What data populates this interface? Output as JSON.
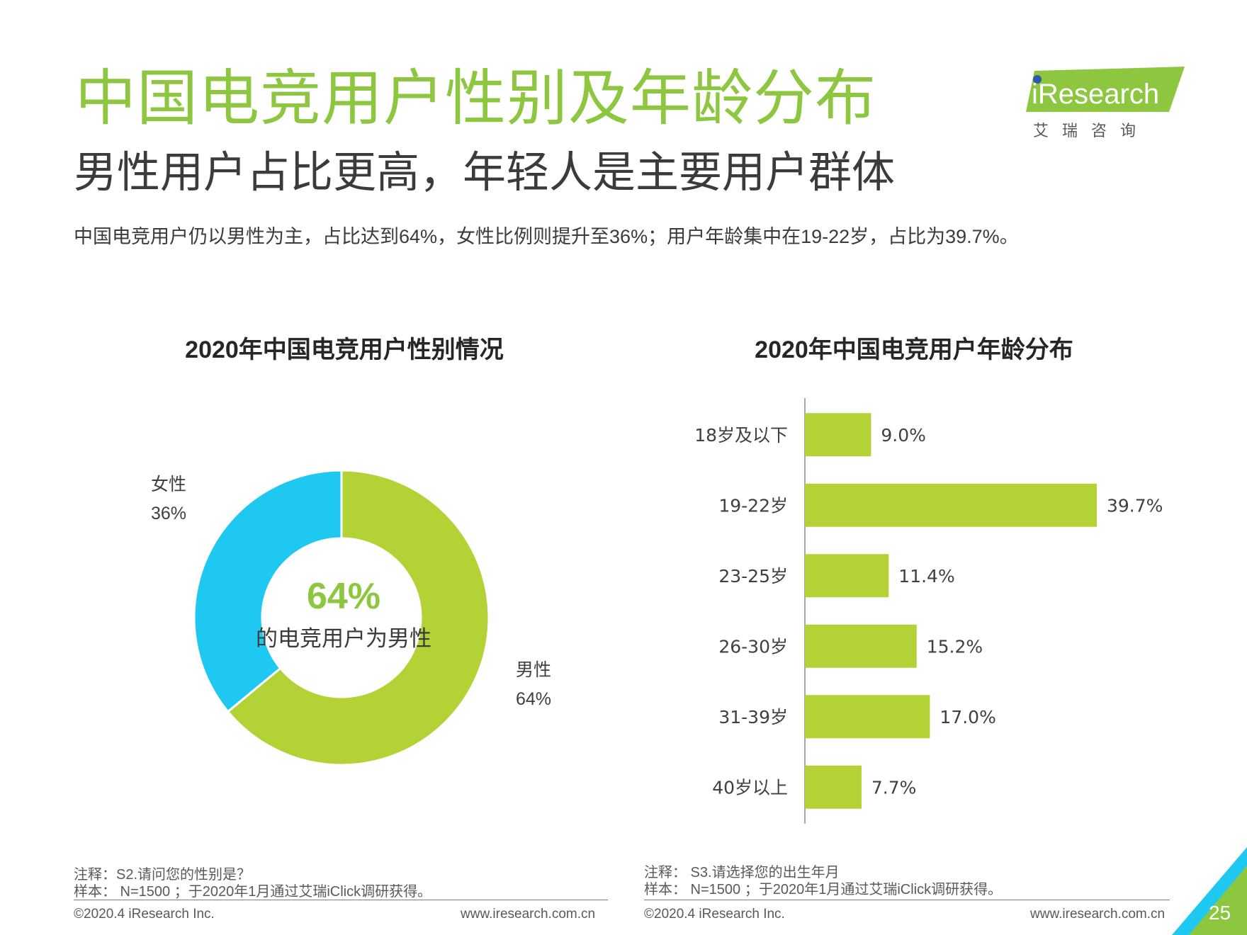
{
  "header": {
    "title": "中国电竞用户性别及年龄分布",
    "subtitle": "男性用户占比更高，年轻人是主要用户群体",
    "summary": "中国电竞用户仍以男性为主，占比达到64%，女性比例则提升至36%；用户年龄集中在19-22岁，占比为39.7%。"
  },
  "logo": {
    "brand": "iResearch",
    "cn": "艾 瑞 咨 询"
  },
  "gender_chart": {
    "title": "2020年中国电竞用户性别情况",
    "center_value": "64%",
    "center_caption": "的电竞用户为男性",
    "female_label": "女性",
    "female_value": "36%",
    "male_label": "男性",
    "male_value": "64%"
  },
  "age_chart": {
    "title": "2020年中国电竞用户年龄分布"
  },
  "chart_data": [
    {
      "type": "pie",
      "title": "2020年中国电竞用户性别情况",
      "categories": [
        "男性",
        "女性"
      ],
      "values": [
        64,
        36
      ],
      "colors": [
        "#B2D235",
        "#1EC8F0"
      ]
    },
    {
      "type": "bar",
      "orientation": "horizontal",
      "title": "2020年中国电竞用户年龄分布",
      "categories": [
        "18岁及以下",
        "19-22岁",
        "23-25岁",
        "26-30岁",
        "31-39岁",
        "40岁以上"
      ],
      "values": [
        9.0,
        39.7,
        11.4,
        15.2,
        17.0,
        7.7
      ],
      "labels": [
        "9.0%",
        "39.7%",
        "11.4%",
        "15.2%",
        "17.0%",
        "7.7%"
      ],
      "xlim": [
        0,
        43
      ],
      "color": "#B2D235"
    }
  ],
  "notes": {
    "left_note": "注释：S2.请问您的性别是？",
    "left_sample": "样本： N=1500 ；于2020年1月通过艾瑞iClick调研获得。",
    "right_note": "注释： S3.请选择您的出生年月",
    "right_sample": "样本： N=1500 ；于2020年1月通过艾瑞iClick调研获得。"
  },
  "footer": {
    "copyright_left": "©2020.4 iResearch Inc.",
    "url_left": "www.iresearch.com.cn",
    "copyright_right": "©2020.4 iResearch Inc.",
    "url_right": "www.iresearch.com.cn",
    "page_number": "25"
  }
}
